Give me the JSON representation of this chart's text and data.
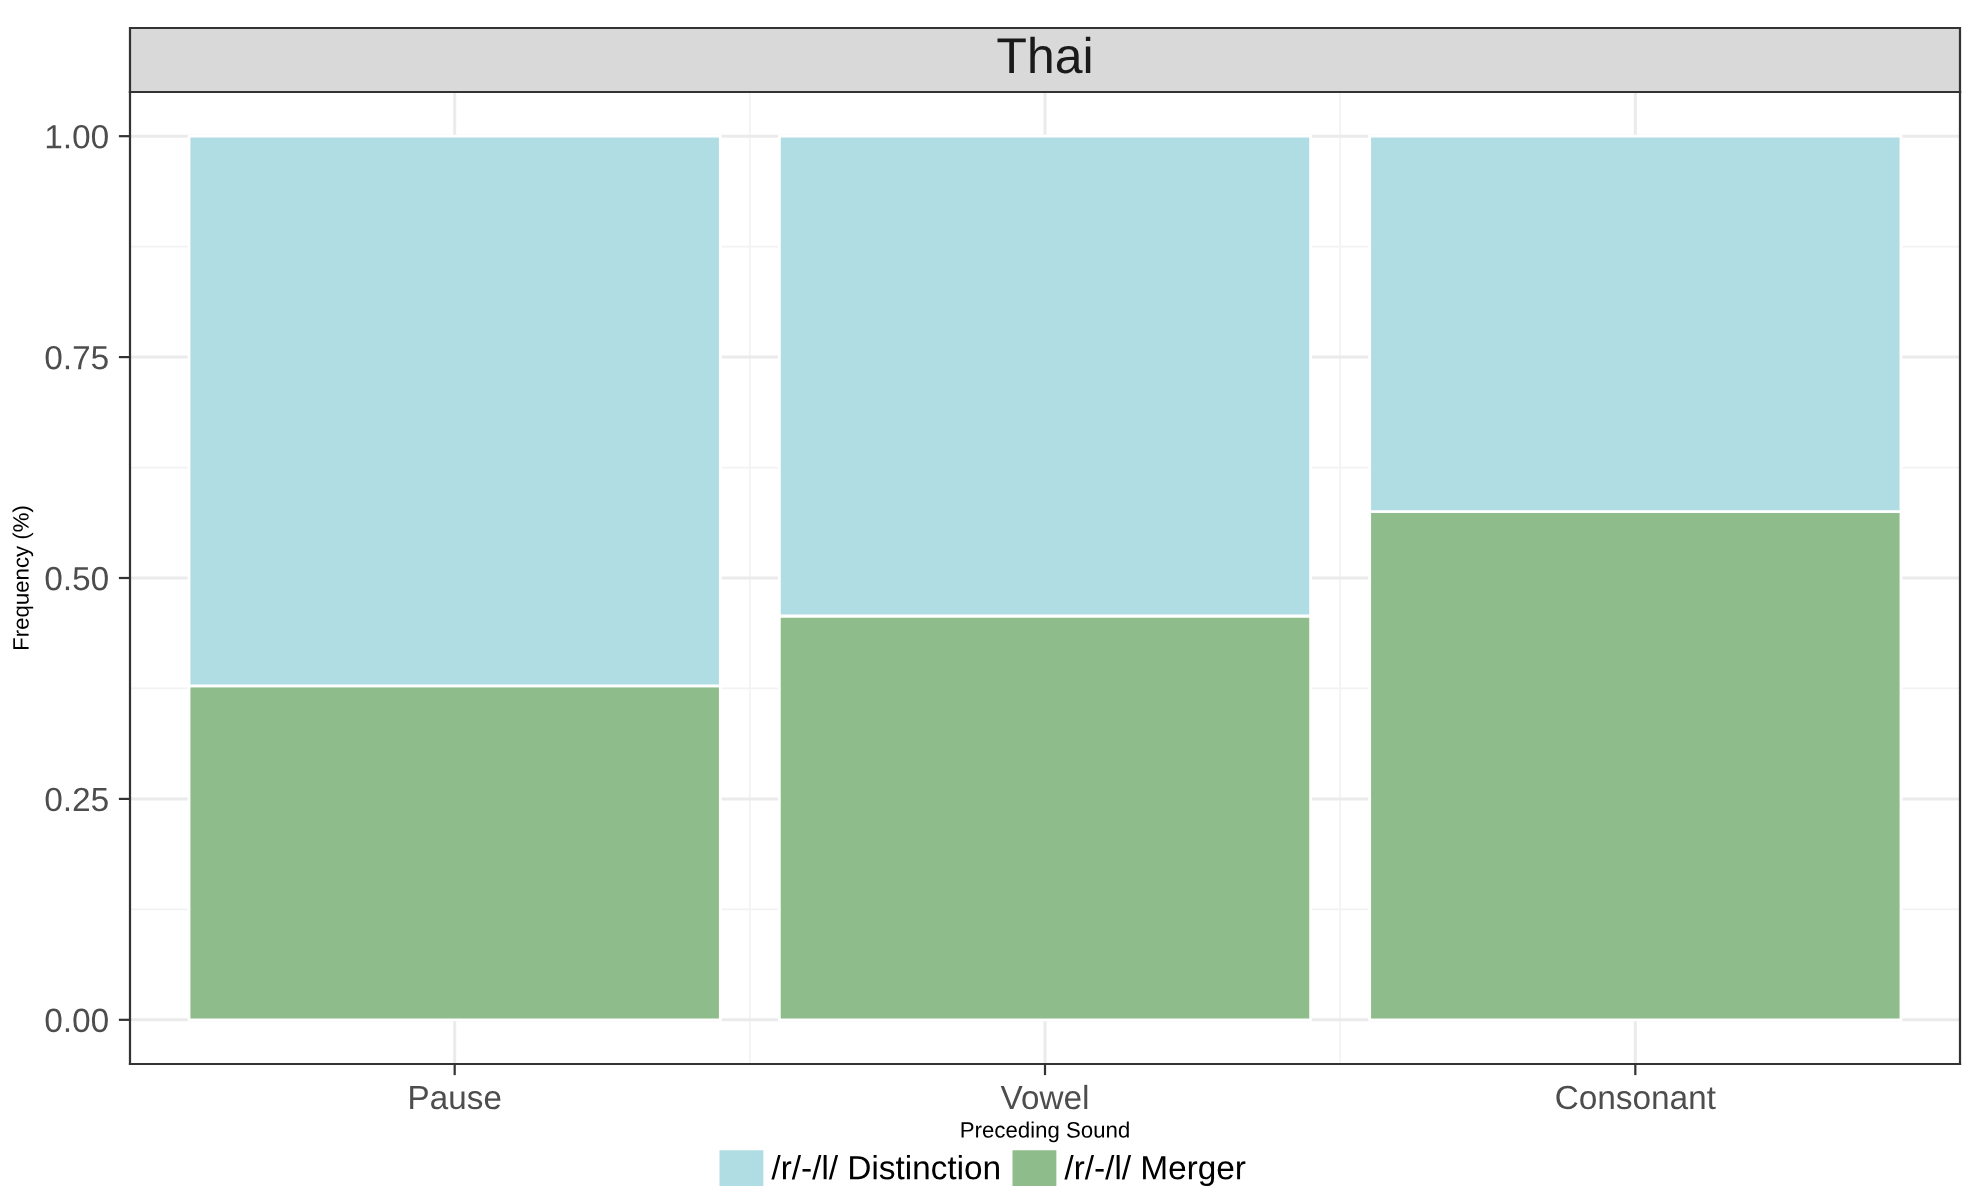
{
  "chart_data": {
    "type": "bar",
    "title": "Thai",
    "xlabel": "Preceding Sound",
    "ylabel": "Frequency (%)",
    "categories": [
      "Pause",
      "Vowel",
      "Consonant"
    ],
    "series": [
      {
        "name": "/r/-/l/ Merger",
        "color": "#8fbc8b",
        "values": [
          0.378,
          0.457,
          0.575
        ]
      },
      {
        "name": "/r/-/l/ Distinction",
        "color": "#b0dde3",
        "values": [
          0.622,
          0.543,
          0.425
        ]
      }
    ],
    "stacked": true,
    "ylim": [
      -0.05,
      1.05
    ],
    "yticks": [
      {
        "value": 0,
        "label": "0.00"
      },
      {
        "value": 0.25,
        "label": "0.25"
      },
      {
        "value": 0.5,
        "label": "0.50"
      },
      {
        "value": 0.75,
        "label": "0.75"
      },
      {
        "value": 1,
        "label": "1.00"
      }
    ],
    "grid": true,
    "legend": "bottom"
  }
}
